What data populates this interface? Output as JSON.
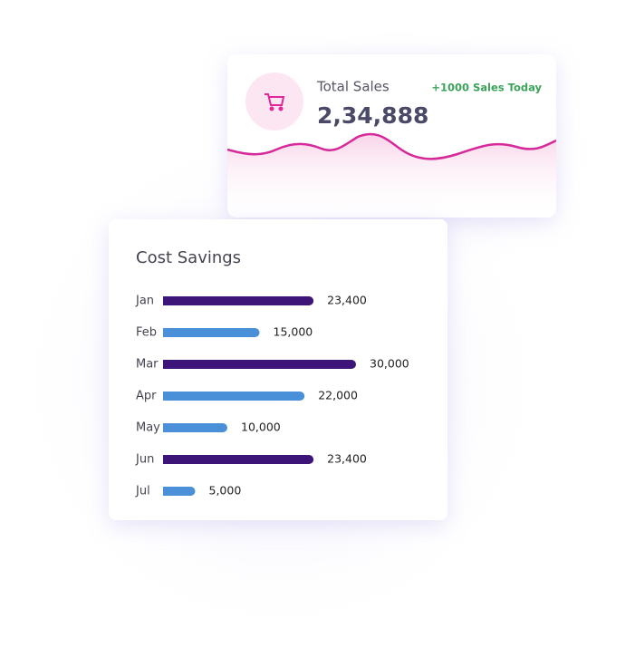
{
  "sales_card": {
    "title": "Total Sales",
    "value": "2,34,888",
    "badge": "+1000 Sales Today"
  },
  "chart_data": {
    "type": "bar",
    "orientation": "horizontal",
    "title": "Cost Savings",
    "categories": [
      "Jan",
      "Feb",
      "Mar",
      "Apr",
      "May",
      "Jun",
      "Jul"
    ],
    "values": [
      23400,
      15000,
      30000,
      22000,
      10000,
      23400,
      5000
    ],
    "value_labels": [
      "23,400",
      "15,000",
      "30,000",
      "22,000",
      "10,000",
      "23,400",
      "5,000"
    ],
    "colors": [
      "#3d1477",
      "#4a90d9",
      "#3d1477",
      "#4a90d9",
      "#4a90d9",
      "#3d1477",
      "#4a90d9"
    ]
  }
}
